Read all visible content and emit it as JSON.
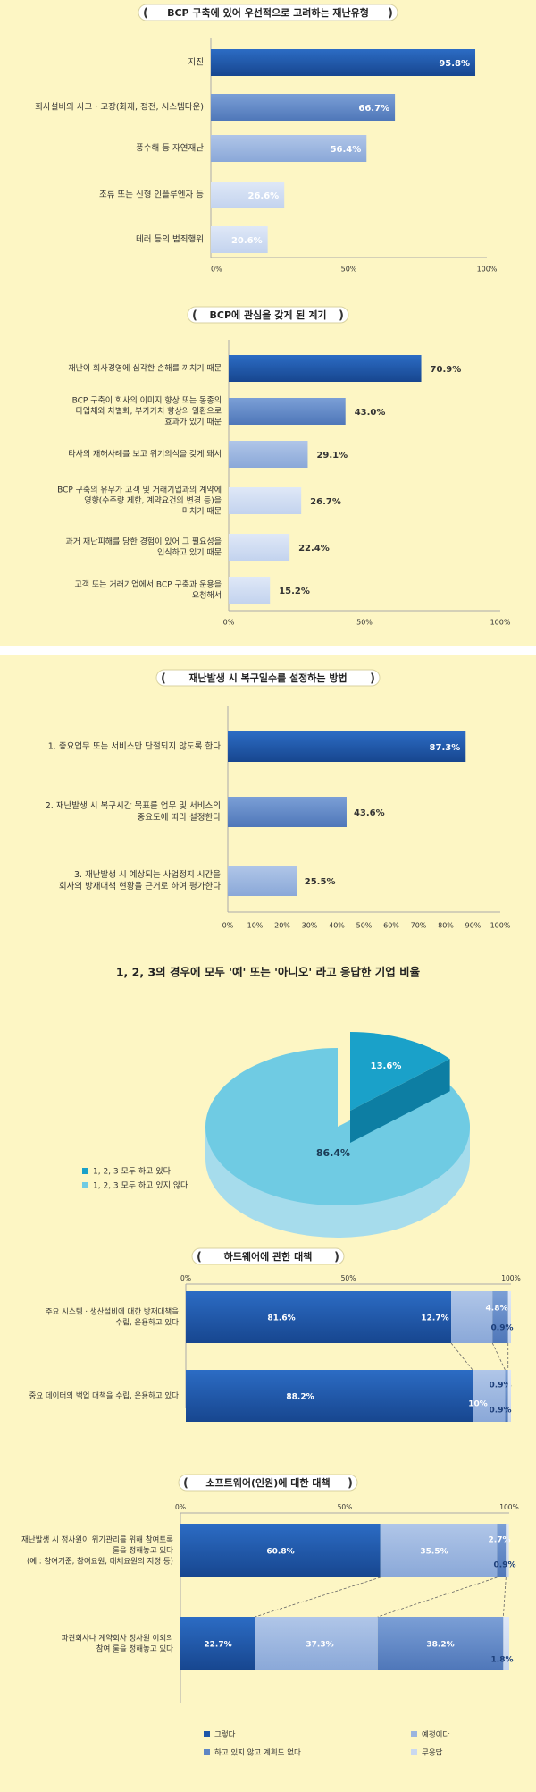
{
  "colors": {
    "background": "#fdf6c4",
    "dark_blue": "#1d56a8",
    "mid_blue": "#5f86c4",
    "light_blue": "#9ab4de",
    "pale_blue": "#c9d8f0",
    "cyan_dark": "#1aa1c9",
    "cyan_light": "#6fcbe3",
    "cyan_pale": "#bfe6f2"
  },
  "chart_data": [
    {
      "type": "bar",
      "orientation": "horizontal",
      "title": "BCP 구축에 있어 우선적으로 고려하는 재난유형",
      "categories": [
        "지진",
        "회사설비의 사고 · 고장(화재, 정전, 시스템다운)",
        "풍수해 등 자연재난",
        "조류 또는 신형 인플루엔자 등",
        "테러 등의 범죄행위"
      ],
      "values": [
        95.8,
        66.7,
        56.4,
        26.6,
        20.6
      ],
      "value_labels": [
        "95.8%",
        "66.7%",
        "56.4%",
        "26.6%",
        "20.6%"
      ],
      "xlim": [
        0,
        100
      ],
      "x_ticks": [
        "0%",
        "50%",
        "100%"
      ]
    },
    {
      "type": "bar",
      "orientation": "horizontal",
      "title": "BCP에 관심을 갖게 된 계기",
      "categories": [
        [
          "재난이 회사경영에 심각한 손해를 끼치기 때문"
        ],
        [
          "BCP 구축이 회사의 이미지 향상 또는 동종의",
          "타업체와 차별화, 부가가치 향상의 일환으로",
          "효과가 있기 때문"
        ],
        [
          "타사의 재해사례를 보고 위기의식을 갖게 돼서"
        ],
        [
          "BCP 구축의 유무가 고객 및 거래기업과의 계약에",
          "영향(수주량 제한, 계약요건의 변경 등)을",
          "미치기 때문"
        ],
        [
          "과거 재난피해를 당한 경험이 있어 그 필요성을",
          "인식하고 있기 때문"
        ],
        [
          "고객 또는 거래기업에서 BCP 구축과 운용을",
          "요청해서"
        ]
      ],
      "values": [
        70.9,
        43.0,
        29.1,
        26.7,
        22.4,
        15.2
      ],
      "value_labels": [
        "70.9%",
        "43.0%",
        "29.1%",
        "26.7%",
        "22.4%",
        "15.2%"
      ],
      "xlim": [
        0,
        100
      ],
      "x_ticks": [
        "0%",
        "50%",
        "100%"
      ]
    },
    {
      "type": "bar",
      "orientation": "horizontal",
      "title": "재난발생 시 복구일수를 설정하는 방법",
      "categories": [
        [
          "1. 중요업무 또는 서비스만 단절되지 않도록 한다"
        ],
        [
          "2. 재난발생 시 복구시간 목표를 업무 및 서비스의",
          "중요도에 따라 설정한다"
        ],
        [
          "3. 재난발생 시 예상되는 사업정지 시간을",
          "회사의 방재대책 현황을 근거로 하여 평가한다"
        ]
      ],
      "values": [
        87.3,
        43.6,
        25.5
      ],
      "value_labels": [
        "87.3%",
        "43.6%",
        "25.5%"
      ],
      "xlim": [
        0,
        100
      ],
      "x_ticks": [
        "0%",
        "10%",
        "20%",
        "30%",
        "40%",
        "50%",
        "60%",
        "70%",
        "80%",
        "90%",
        "100%"
      ]
    },
    {
      "type": "pie",
      "title": "1, 2, 3의 경우에 모두 '예' 또는 '아니오' 라고 응답한 기업 비율",
      "slices": [
        {
          "label": "1, 2, 3 모두 하고 있다",
          "value": 13.6,
          "value_label": "13.6%"
        },
        {
          "label": "1, 2, 3 모두 하고 있지 않다",
          "value": 86.4,
          "value_label": "86.4%"
        }
      ]
    },
    {
      "type": "bar",
      "orientation": "horizontal",
      "stacked": true,
      "title": "하드웨어에 관한 대책",
      "categories": [
        [
          "주요 시스템 · 생산설비에 대한 방재대책을",
          "수립, 운용하고 있다"
        ],
        [
          "중요 데이터의 백업 대책을 수립, 운용하고 있다"
        ]
      ],
      "series": [
        {
          "name": "그렇다",
          "values": [
            81.6,
            88.2
          ],
          "value_labels": [
            "81.6%",
            "88.2%"
          ]
        },
        {
          "name": "예정이다",
          "values": [
            12.7,
            10
          ],
          "value_labels": [
            "12.7%",
            "10%"
          ]
        },
        {
          "name": "하고 있지 않고 계획도 없다",
          "values": [
            4.8,
            0.9
          ],
          "value_labels": [
            "4.8%",
            "0.9%"
          ]
        },
        {
          "name": "무응답",
          "values": [
            0.9,
            0.9
          ],
          "value_labels": [
            "0.9%",
            "0.9%"
          ]
        }
      ],
      "xlim": [
        0,
        100
      ],
      "x_ticks": [
        "0%",
        "50%",
        "100%"
      ]
    },
    {
      "type": "bar",
      "orientation": "horizontal",
      "stacked": true,
      "title": "소프트웨어(인원)에 대한 대책",
      "categories": [
        [
          "재난발생 시 정사원이 위기관리를 위해 참여토록",
          "룰을 정해놓고 있다",
          "(예 : 참여기준, 참여요원, 대체요원의 지정 등)"
        ],
        [
          "파견회사나 계약회사 정사원 이외의",
          "참여 룰을 정해놓고 있다"
        ]
      ],
      "series": [
        {
          "name": "그렇다",
          "values": [
            60.8,
            22.7
          ],
          "value_labels": [
            "60.8%",
            "22.7%"
          ]
        },
        {
          "name": "예정이다",
          "values": [
            35.5,
            37.3
          ],
          "value_labels": [
            "35.5%",
            "37.3%"
          ]
        },
        {
          "name": "하고 있지 않고 계획도 없다",
          "values": [
            2.7,
            38.2
          ],
          "value_labels": [
            "2.7%",
            "38.2%"
          ]
        },
        {
          "name": "무응답",
          "values": [
            0.9,
            1.8
          ],
          "value_labels": [
            "0.9%",
            "1.8%"
          ]
        }
      ],
      "xlim": [
        0,
        100
      ],
      "x_ticks": [
        "0%",
        "50%",
        "100%"
      ],
      "legend": [
        "그렇다",
        "예정이다",
        "하고 있지 않고 계획도 없다",
        "무응답"
      ]
    }
  ]
}
